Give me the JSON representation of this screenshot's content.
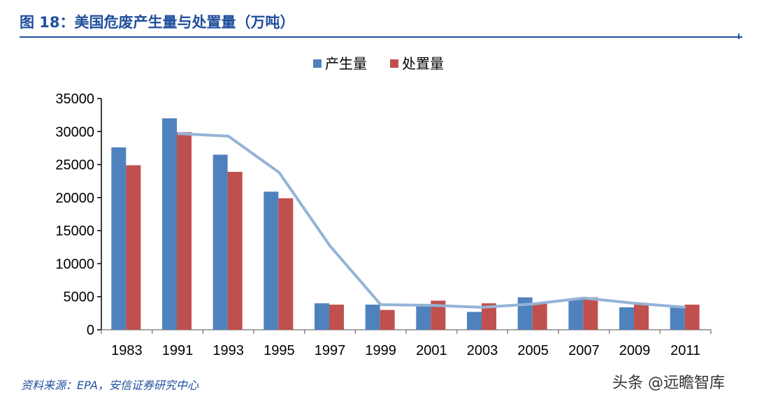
{
  "title": "图 18：美国危废产生量与处置量（万吨）",
  "source": "资料来源：EPA，安信证券研究中心",
  "watermark": "头条 @远瞻智库",
  "chart_data": {
    "type": "bar",
    "categories": [
      "1983",
      "1991",
      "1993",
      "1995",
      "1997",
      "1999",
      "2001",
      "2003",
      "2005",
      "2007",
      "2009",
      "2011"
    ],
    "series": [
      {
        "name": "产生量",
        "color": "#4f81bd",
        "values": [
          27600,
          32000,
          26500,
          20900,
          4000,
          3800,
          3700,
          2700,
          4900,
          4700,
          3400,
          3400
        ]
      },
      {
        "name": "处置量",
        "color": "#c0504d",
        "values": [
          24900,
          29900,
          23900,
          19900,
          3800,
          3000,
          4400,
          4000,
          4000,
          4900,
          4000,
          3800
        ]
      }
    ],
    "trend_line": {
      "type": "line",
      "color": "#95b3d7",
      "values": [
        null,
        29700,
        29300,
        23800,
        12700,
        3800,
        3700,
        3400,
        3900,
        4800,
        4000,
        3400
      ]
    },
    "yticks": [
      "0",
      "5000",
      "10000",
      "15000",
      "20000",
      "25000",
      "30000",
      "35000"
    ],
    "ylim": [
      0,
      35000
    ],
    "legend": "top",
    "grid": false
  }
}
